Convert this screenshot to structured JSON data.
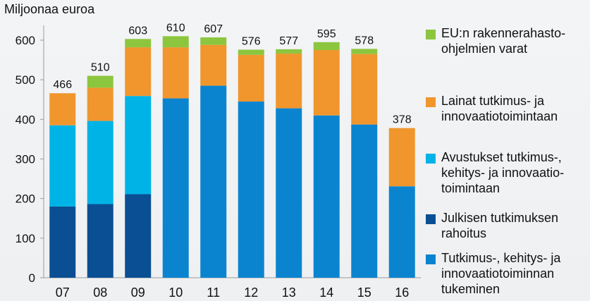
{
  "chart_data": {
    "type": "bar",
    "stacked": true,
    "ylabel": "Miljoonaa euroa",
    "ylim": [
      0,
      650
    ],
    "yticks": [
      0,
      100,
      200,
      300,
      400,
      500,
      600
    ],
    "grid": false,
    "legend_position": "right",
    "categories": [
      "07",
      "08",
      "09",
      "10",
      "11",
      "12",
      "13",
      "14",
      "15",
      "16"
    ],
    "totals": [
      466,
      510,
      603,
      610,
      607,
      576,
      577,
      595,
      578,
      378
    ],
    "series": [
      {
        "key": "julkinen",
        "name": "Julkisen tutkimuksen rahoitus",
        "color": "#0a4f93",
        "values": [
          180,
          186,
          211,
          0,
          0,
          0,
          0,
          0,
          0,
          0
        ]
      },
      {
        "key": "tuki",
        "name": "Tutkimus-, kehitys- ja innovaatiotoiminnan tukeminen",
        "color": "#0b84d0",
        "values": [
          0,
          0,
          0,
          453,
          485,
          445,
          428,
          410,
          387,
          231
        ]
      },
      {
        "key": "avustukset",
        "name": "Avustukset tutkimus-, kehitys- ja innovaatio-toimintaan",
        "color": "#00b3e6",
        "values": [
          205,
          210,
          248,
          0,
          0,
          0,
          0,
          0,
          0,
          0
        ]
      },
      {
        "key": "lainat",
        "name": "Lainat tutkimus- ja innovaatiotoimintaan",
        "color": "#f0962d",
        "values": [
          81,
          84,
          123,
          129,
          103,
          118,
          138,
          165,
          178,
          147
        ]
      },
      {
        "key": "eu",
        "name": "EU:n rakennerahasto-ohjelmien varat",
        "color": "#8cc63e",
        "values": [
          0,
          30,
          21,
          28,
          19,
          13,
          11,
          20,
          13,
          0
        ]
      }
    ]
  },
  "legend": [
    {
      "label": "EU:n rakennerahasto-\nohjelmien varat",
      "color": "#8cc63e"
    },
    {
      "label": "Lainat tutkimus- ja\ninnovaatiotoimintaan",
      "color": "#f0962d"
    },
    {
      "label": "Avustukset tutkimus-,\nkehitys- ja innovaatio-\ntoimintaan",
      "color": "#00b3e6"
    },
    {
      "label": "Julkisen tutkimuksen\nrahoitus",
      "color": "#0a4f93"
    },
    {
      "label": "Tutkimus-, kehitys- ja\ninnovaatiotoiminnan\ntukeminen",
      "color": "#0b84d0"
    }
  ]
}
